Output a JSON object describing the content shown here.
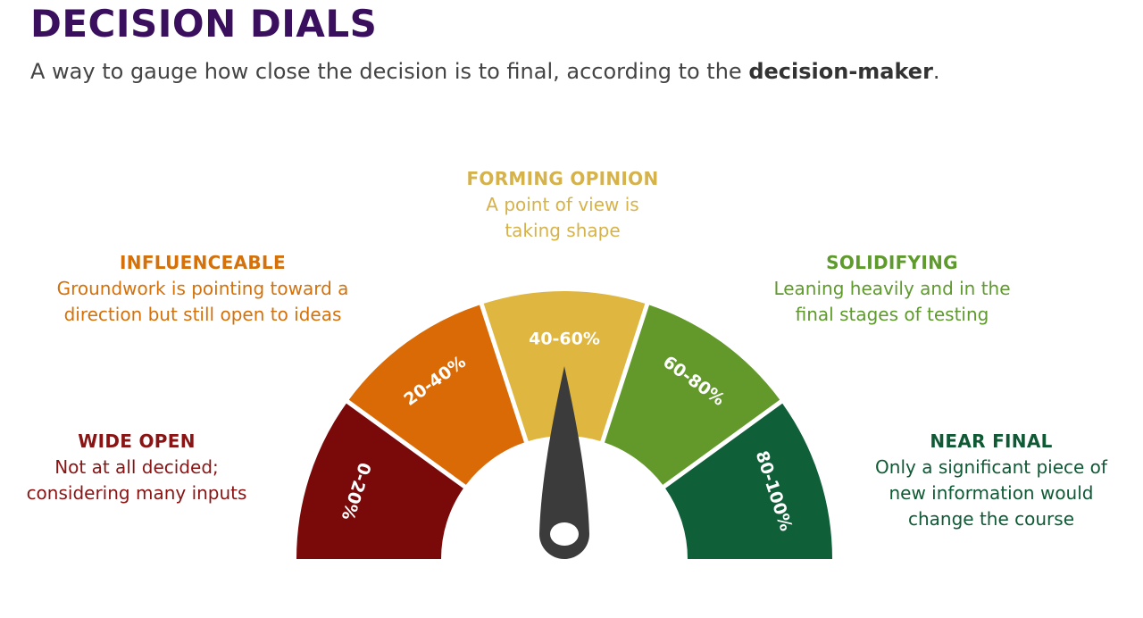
{
  "title": "DECISION DIALS",
  "subtitle": {
    "text": "A way to gauge how close the decision is to final, according to the ",
    "emphasis": "decision-maker",
    "end": "."
  },
  "segments": [
    {
      "label": "0-20%",
      "color": "#7a0a0a"
    },
    {
      "label": "20-40%",
      "color": "#d96a06"
    },
    {
      "label": "40-60%",
      "color": "#dfb63f"
    },
    {
      "label": "60-80%",
      "color": "#63992b"
    },
    {
      "label": "80-100%",
      "color": "#0f5f38"
    }
  ],
  "zones": {
    "wide_open": {
      "heading": "WIDE OPEN",
      "lines": [
        "Not at all decided;",
        "considering many inputs"
      ],
      "color": "#8a1414"
    },
    "influenceable": {
      "heading": "INFLUENCEABLE",
      "lines": [
        "Groundwork is pointing toward a",
        "direction but still open to ideas"
      ],
      "color": "#d4710b"
    },
    "forming": {
      "heading": "FORMING OPINION",
      "lines": [
        "A point of view is",
        "taking shape"
      ],
      "color": "#d6b24a"
    },
    "solidifying": {
      "heading": "SOLIDIFYING",
      "lines": [
        "Leaning heavily and in the",
        "final stages of testing"
      ],
      "color": "#5e9a2c"
    },
    "near_final": {
      "heading": "NEAR FINAL",
      "lines": [
        "Only a significant piece of",
        "new information would",
        "change the course"
      ],
      "color": "#0f5a35"
    }
  },
  "needle": {
    "color": "#3b3b3b",
    "position": "40-60%"
  }
}
